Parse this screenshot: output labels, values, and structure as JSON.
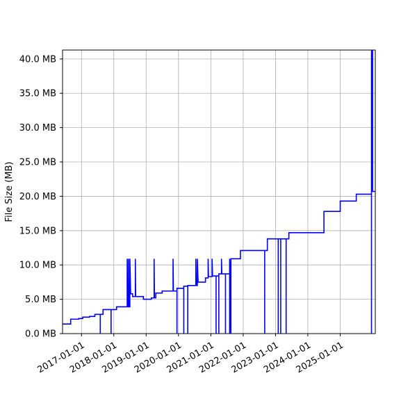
{
  "chart_data": {
    "type": "line",
    "title": "",
    "xlabel": "",
    "ylabel": "File Size (MB)",
    "x_ticks": [
      "2017-01-01",
      "2018-01-01",
      "2019-01-01",
      "2020-01-01",
      "2021-01-01",
      "2022-01-01",
      "2023-01-01",
      "2024-01-01",
      "2025-01-01"
    ],
    "y_ticks": [
      0,
      5,
      10,
      15,
      20,
      25,
      30,
      35,
      40
    ],
    "y_tick_labels": [
      "0.0 MB",
      "5.0 MB",
      "10.0 MB",
      "15.0 MB",
      "20.0 MB",
      "25.0 MB",
      "30.0 MB",
      "35.0 MB",
      "40.0 MB"
    ],
    "xlim": [
      "2016-06-01",
      "2026-02-01"
    ],
    "ylim": [
      0,
      41.3
    ],
    "grid": true,
    "legend": "none",
    "series": [
      {
        "color": "#0000ff",
        "points": [
          [
            "2016-06-01",
            1.4
          ],
          [
            "2016-09-01",
            1.4
          ],
          [
            "2016-09-01",
            2.1
          ],
          [
            "2016-12-01",
            2.1
          ],
          [
            "2016-12-01",
            2.2
          ],
          [
            "2017-01-15",
            2.2
          ],
          [
            "2017-01-15",
            2.4
          ],
          [
            "2017-04-01",
            2.4
          ],
          [
            "2017-04-01",
            2.5
          ],
          [
            "2017-06-01",
            2.5
          ],
          [
            "2017-06-01",
            2.8
          ],
          [
            "2017-08-01",
            2.8
          ],
          [
            "2017-08-01",
            0
          ],
          [
            "2017-08-01",
            2.8
          ],
          [
            "2017-09-01",
            2.8
          ],
          [
            "2017-09-01",
            3.5
          ],
          [
            "2017-12-01",
            3.5
          ],
          [
            "2017-12-01",
            0
          ],
          [
            "2017-12-01",
            3.5
          ],
          [
            "2018-02-01",
            3.5
          ],
          [
            "2018-02-01",
            3.9
          ],
          [
            "2018-06-01",
            3.9
          ],
          [
            "2018-06-01",
            10.9
          ],
          [
            "2018-06-05",
            3.9
          ],
          [
            "2018-06-15",
            3.9
          ],
          [
            "2018-06-15",
            10.9
          ],
          [
            "2018-06-20",
            3.9
          ],
          [
            "2018-07-01",
            3.9
          ],
          [
            "2018-07-01",
            10.9
          ],
          [
            "2018-07-10",
            5.8
          ],
          [
            "2018-08-01",
            5.8
          ],
          [
            "2018-08-01",
            5.4
          ],
          [
            "2018-09-01",
            5.4
          ],
          [
            "2018-09-01",
            10.9
          ],
          [
            "2018-09-05",
            5.4
          ],
          [
            "2018-12-01",
            5.4
          ],
          [
            "2018-12-01",
            5.0
          ],
          [
            "2019-03-01",
            5.0
          ],
          [
            "2019-03-01",
            5.2
          ],
          [
            "2019-04-01",
            5.2
          ],
          [
            "2019-04-01",
            10.9
          ],
          [
            "2019-04-05",
            5.2
          ],
          [
            "2019-04-20",
            5.2
          ],
          [
            "2019-04-20",
            5.9
          ],
          [
            "2019-07-01",
            5.9
          ],
          [
            "2019-07-01",
            6.2
          ],
          [
            "2019-11-01",
            6.2
          ],
          [
            "2019-11-01",
            10.9
          ],
          [
            "2019-11-05",
            6.2
          ],
          [
            "2019-12-15",
            6.2
          ],
          [
            "2019-12-15",
            0
          ],
          [
            "2019-12-15",
            6.6
          ],
          [
            "2020-03-01",
            6.6
          ],
          [
            "2020-03-01",
            0
          ],
          [
            "2020-03-01",
            6.9
          ],
          [
            "2020-04-15",
            6.9
          ],
          [
            "2020-04-15",
            0
          ],
          [
            "2020-04-15",
            7.0
          ],
          [
            "2020-07-15",
            7.0
          ],
          [
            "2020-07-15",
            10.9
          ],
          [
            "2020-07-20",
            7.0
          ],
          [
            "2020-08-01",
            7.0
          ],
          [
            "2020-08-01",
            10.9
          ],
          [
            "2020-08-10",
            7.5
          ],
          [
            "2020-11-01",
            7.5
          ],
          [
            "2020-11-01",
            8.1
          ],
          [
            "2020-12-01",
            8.1
          ],
          [
            "2020-12-01",
            10.9
          ],
          [
            "2020-12-05",
            8.3
          ],
          [
            "2021-01-15",
            8.3
          ],
          [
            "2021-01-15",
            10.9
          ],
          [
            "2021-01-20",
            8.4
          ],
          [
            "2021-03-01",
            8.4
          ],
          [
            "2021-03-01",
            0
          ],
          [
            "2021-03-01",
            8.4
          ],
          [
            "2021-04-01",
            8.4
          ],
          [
            "2021-04-01",
            0
          ],
          [
            "2021-04-01",
            8.7
          ],
          [
            "2021-05-01",
            8.7
          ],
          [
            "2021-05-01",
            10.9
          ],
          [
            "2021-05-05",
            8.7
          ],
          [
            "2021-06-15",
            8.7
          ],
          [
            "2021-06-15",
            0
          ],
          [
            "2021-06-15",
            8.7
          ],
          [
            "2021-08-01",
            8.7
          ],
          [
            "2021-08-01",
            0
          ],
          [
            "2021-08-01",
            10.9
          ],
          [
            "2021-08-15",
            0
          ],
          [
            "2021-08-15",
            10.9
          ],
          [
            "2021-12-01",
            10.9
          ],
          [
            "2021-12-01",
            12.1
          ],
          [
            "2022-09-01",
            12.1
          ],
          [
            "2022-09-01",
            0
          ],
          [
            "2022-09-01",
            12.1
          ],
          [
            "2022-10-01",
            12.1
          ],
          [
            "2022-10-01",
            13.8
          ],
          [
            "2023-02-01",
            13.8
          ],
          [
            "2023-02-01",
            0
          ],
          [
            "2023-02-01",
            13.8
          ],
          [
            "2023-03-01",
            13.8
          ],
          [
            "2023-03-01",
            0
          ],
          [
            "2023-03-01",
            13.8
          ],
          [
            "2023-05-01",
            13.8
          ],
          [
            "2023-05-01",
            0
          ],
          [
            "2023-05-01",
            13.8
          ],
          [
            "2023-06-01",
            13.8
          ],
          [
            "2023-06-01",
            14.7
          ],
          [
            "2024-07-01",
            14.7
          ],
          [
            "2024-07-01",
            17.8
          ],
          [
            "2025-01-01",
            17.8
          ],
          [
            "2025-01-01",
            19.3
          ],
          [
            "2025-07-01",
            19.3
          ],
          [
            "2025-07-01",
            20.3
          ],
          [
            "2025-12-20",
            20.3
          ],
          [
            "2025-12-20",
            0
          ],
          [
            "2025-12-20",
            41.3
          ],
          [
            "2026-01-01",
            41.3
          ],
          [
            "2026-01-01",
            20.7
          ],
          [
            "2026-02-01",
            20.7
          ]
        ]
      }
    ]
  }
}
